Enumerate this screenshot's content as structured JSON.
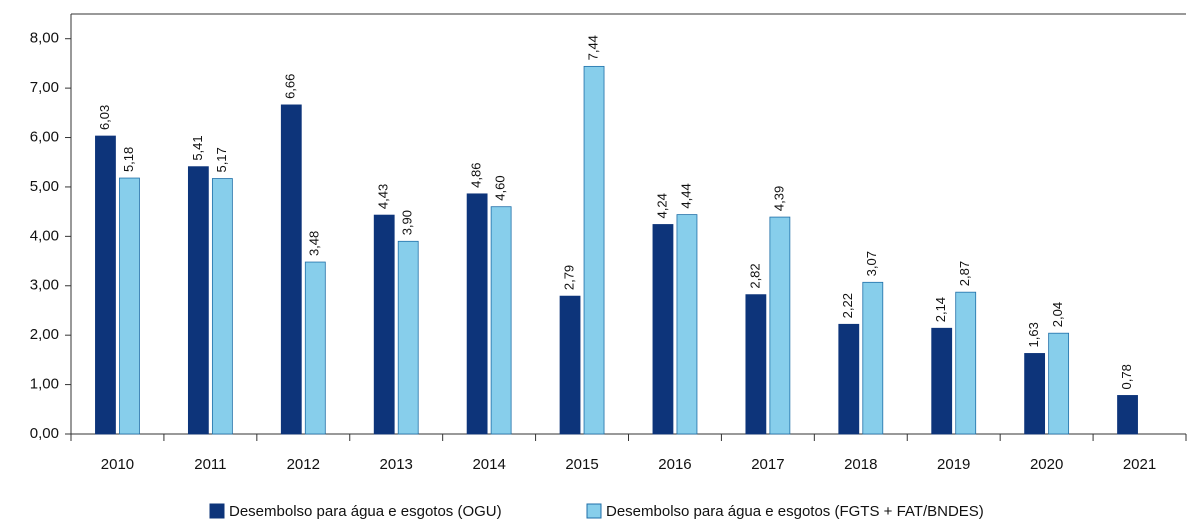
{
  "chart_data": {
    "type": "bar",
    "categories": [
      "2010",
      "2011",
      "2012",
      "2013",
      "2014",
      "2015",
      "2016",
      "2017",
      "2018",
      "2019",
      "2020",
      "2021"
    ],
    "series": [
      {
        "name": "Desembolso para água e esgotos (OGU)",
        "color": "#0d347a",
        "values": [
          6.03,
          5.41,
          6.66,
          4.43,
          4.86,
          2.79,
          4.24,
          2.82,
          2.22,
          2.14,
          1.63,
          0.78
        ],
        "value_labels": [
          "6,03",
          "5,41",
          "6,66",
          "4,43",
          "4,86",
          "2,79",
          "4,24",
          "2,82",
          "2,22",
          "2,14",
          "1,63",
          "0,78"
        ]
      },
      {
        "name": "Desembolso para água e esgotos (FGTS + FAT/BNDES)",
        "color": "#87ceeb",
        "values": [
          5.18,
          5.17,
          3.48,
          3.9,
          4.6,
          7.44,
          4.44,
          4.39,
          3.07,
          2.87,
          2.04,
          null
        ],
        "value_labels": [
          "5,18",
          "5,17",
          "3,48",
          "3,90",
          "4,60",
          "7,44",
          "4,44",
          "4,39",
          "3,07",
          "2,87",
          "2,04",
          null
        ]
      }
    ],
    "ylim": [
      0,
      8.5
    ],
    "yticks": [
      {
        "value": 0,
        "label": "0,00"
      },
      {
        "value": 1,
        "label": "1,00"
      },
      {
        "value": 2,
        "label": "2,00"
      },
      {
        "value": 3,
        "label": "3,00"
      },
      {
        "value": 4,
        "label": "4,00"
      },
      {
        "value": 5,
        "label": "5,00"
      },
      {
        "value": 6,
        "label": "6,00"
      },
      {
        "value": 7,
        "label": "7,00"
      },
      {
        "value": 8,
        "label": "8,00"
      }
    ],
    "legend": "bottom"
  }
}
